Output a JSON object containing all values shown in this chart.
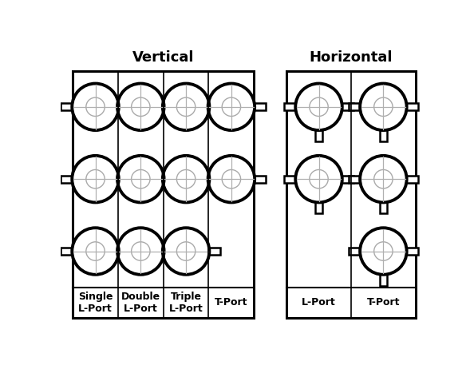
{
  "title_vertical": "Vertical",
  "title_horizontal": "Horizontal",
  "col_labels_vertical": [
    "Single\nL-Port",
    "Double\nL-Port",
    "Triple\nL-Port",
    "T-Port"
  ],
  "col_labels_horizontal": [
    "L-Port",
    "T-Port"
  ],
  "label_fontsize": 9,
  "title_fontsize": 13,
  "VL": 20,
  "VR": 315,
  "HL": 368,
  "HR": 578,
  "VT": 40,
  "VB": 442,
  "HT": 40,
  "HB": 442,
  "LSEP": 392,
  "ball_R": 38
}
